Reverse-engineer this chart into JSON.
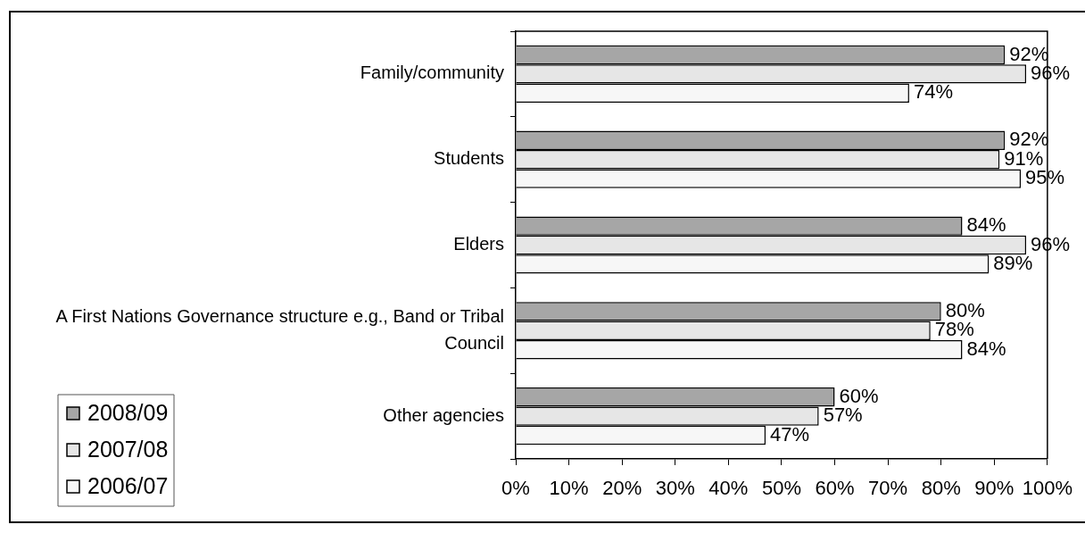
{
  "chart_data": {
    "type": "bar",
    "orientation": "horizontal",
    "categories": [
      "Family/community",
      "Students",
      "Elders",
      "A First Nations Governance structure e.g., Band or Tribal Council",
      "Other agencies"
    ],
    "series": [
      {
        "name": "2008/09",
        "color": "#a6a6a6",
        "values": [
          92,
          92,
          84,
          80,
          60
        ],
        "value_labels": [
          "92%",
          "92%",
          "84%",
          "80%",
          "60%"
        ]
      },
      {
        "name": "2007/08",
        "color": "#e6e6e6",
        "values": [
          96,
          91,
          96,
          78,
          57
        ],
        "value_labels": [
          "96%",
          "91%",
          "96%",
          "78%",
          "57%"
        ]
      },
      {
        "name": "2006/07",
        "color": "#f7f7f7",
        "values": [
          74,
          95,
          89,
          84,
          47
        ],
        "value_labels": [
          "74%",
          "95%",
          "89%",
          "84%",
          "47%"
        ]
      }
    ],
    "xlim": [
      0,
      100
    ],
    "xticks": [
      {
        "value": 0,
        "label": "0%"
      },
      {
        "value": 10,
        "label": "10%"
      },
      {
        "value": 20,
        "label": "20%"
      },
      {
        "value": 30,
        "label": "30%"
      },
      {
        "value": 40,
        "label": "40%"
      },
      {
        "value": 50,
        "label": "50%"
      },
      {
        "value": 60,
        "label": "60%"
      },
      {
        "value": 70,
        "label": "70%"
      },
      {
        "value": 80,
        "label": "80%"
      },
      {
        "value": 90,
        "label": "90%"
      },
      {
        "value": 100,
        "label": "100%"
      }
    ],
    "legend": "bottom left"
  }
}
